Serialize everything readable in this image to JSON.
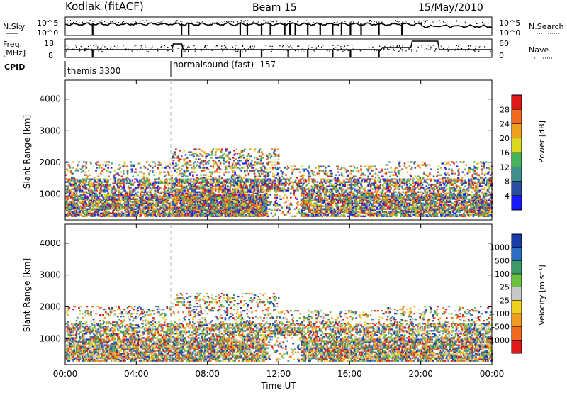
{
  "header": {
    "station": "Kodiak (fitACF)",
    "beam": "Beam 15",
    "date": "15/May/2010"
  },
  "strip": {
    "nsky_label": "N.Sky",
    "nsearch_label": "N.Search",
    "freq_label": "Freq.",
    "freq_unit": "[MHz]",
    "nave_label": "Nave",
    "cpid_label": "CPID",
    "nsky_ticks": [
      "10^5",
      "10^0"
    ],
    "nsearch_ticks": [
      "10^5",
      "10^0"
    ],
    "freq_ticks": [
      "18",
      "8"
    ],
    "nave_ticks": [
      "60",
      "0"
    ],
    "cpid_segments": [
      {
        "text": "themis 3300",
        "start_hour": 0
      },
      {
        "text": "normalsound (fast) -157",
        "start_hour": 6
      }
    ]
  },
  "x_axis": {
    "label": "Time UT",
    "ticks": [
      "00:00",
      "04:00",
      "08:00",
      "12:00",
      "16:00",
      "20:00",
      "00:00"
    ]
  },
  "power_panel": {
    "ylabel": "Slant Range [km]",
    "yticks": [
      "1000",
      "2000",
      "3000",
      "4000"
    ],
    "cbar_label": "Power [dB]",
    "cbar_ticks": [
      "4",
      "8",
      "12",
      "16",
      "20",
      "24",
      "28"
    ],
    "cbar_colors": [
      "#1a1aff",
      "#2a4fa0",
      "#3f8f8a",
      "#46b35a",
      "#d8d820",
      "#f0a020",
      "#f06a20",
      "#e01818"
    ]
  },
  "velocity_panel": {
    "ylabel": "Slant Range [km]",
    "yticks": [
      "1000",
      "2000",
      "3000",
      "4000"
    ],
    "cbar_label": "Velocity [m s⁻¹]",
    "cbar_ticks": [
      "1000",
      "500",
      "100",
      "25",
      "-25",
      "-100",
      "-500",
      "-1000"
    ],
    "cbar_colors": [
      "#1a3aa8",
      "#2b6cc4",
      "#3a9a6a",
      "#6cc040",
      "#c8c8c8",
      "#f0d020",
      "#f09a20",
      "#f06a20",
      "#e01818"
    ]
  },
  "chart_data": {
    "type": "heatmap",
    "x_range_hours": [
      0,
      24
    ],
    "y_range_km": [
      180,
      4600
    ],
    "power_activity": [
      {
        "hour_start": 0,
        "hour_end": 6,
        "range_km": [
          300,
          2050
        ],
        "level": "moderate"
      },
      {
        "hour_start": 6,
        "hour_end": 12,
        "range_km": [
          300,
          2450
        ],
        "level": "high"
      },
      {
        "hour_start": 12,
        "hour_end": 18,
        "range_km": [
          300,
          1900
        ],
        "level": "moderate"
      },
      {
        "hour_start": 18,
        "hour_end": 24,
        "range_km": [
          300,
          2050
        ],
        "level": "moderate"
      }
    ],
    "velocity_activity": [
      {
        "hour_start": 0,
        "hour_end": 6,
        "range_km": [
          300,
          2050
        ],
        "dominant": "mixed"
      },
      {
        "hour_start": 6,
        "hour_end": 12,
        "range_km": [
          300,
          2450
        ],
        "dominant": "mixed"
      },
      {
        "hour_start": 12,
        "hour_end": 18,
        "range_km": [
          300,
          1900
        ],
        "dominant": "mixed"
      },
      {
        "hour_start": 18,
        "hour_end": 24,
        "range_km": [
          300,
          2050
        ],
        "dominant": "mixed"
      }
    ]
  }
}
